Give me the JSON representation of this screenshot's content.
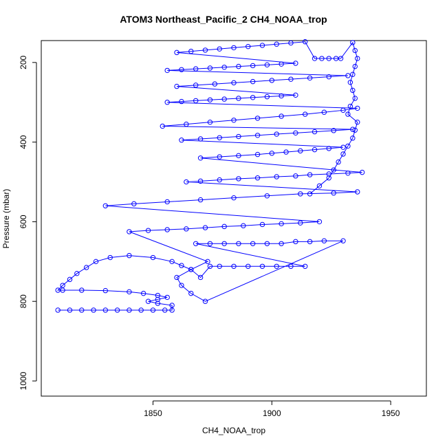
{
  "chart_data": {
    "type": "scatter",
    "title": "ATOM3 Northeast_Pacific_2 CH4_NOAA_trop",
    "xlabel": "CH4_NOAA_trop",
    "ylabel": "Pressure (mbar)",
    "xlim": [
      1803,
      1965
    ],
    "ylim": [
      1038,
      145
    ],
    "y_reversed": true,
    "x_ticks": [
      1850,
      1900,
      1950
    ],
    "y_ticks": [
      200,
      400,
      600,
      800,
      1000
    ],
    "x_tick_labels": [
      "1850",
      "1900",
      "1950"
    ],
    "y_tick_labels": [
      "200",
      "400",
      "600",
      "800",
      "1000"
    ],
    "grid": false,
    "legend": "none",
    "marker": "open-circle",
    "connected": true,
    "color": "#0000ff",
    "series": [
      {
        "x": [
          1810,
          1815,
          1820,
          1825,
          1830,
          1835,
          1840,
          1845,
          1850,
          1855,
          1858,
          1858,
          1852,
          1848,
          1852,
          1856,
          1852,
          1846,
          1840,
          1830,
          1820,
          1812,
          1810,
          1812,
          1815,
          1818,
          1822,
          1826,
          1832,
          1840,
          1850,
          1858,
          1862,
          1866,
          1870,
          1874,
          1878,
          1884,
          1890,
          1896,
          1902,
          1908,
          1914,
          1868,
          1874,
          1880,
          1886,
          1892,
          1898,
          1904,
          1910,
          1916,
          1922,
          1930,
          1872,
          1866,
          1862,
          1860,
          1866,
          1873,
          1840,
          1848,
          1856,
          1864,
          1872,
          1880,
          1888,
          1896,
          1904,
          1912,
          1920,
          1830,
          1842,
          1856,
          1870,
          1884,
          1898,
          1912,
          1926,
          1936,
          1864,
          1870,
          1878,
          1886,
          1894,
          1902,
          1910,
          1916,
          1924,
          1932,
          1938,
          1870,
          1878,
          1886,
          1894,
          1900,
          1906,
          1912,
          1918,
          1924,
          1930,
          1862,
          1870,
          1878,
          1886,
          1894,
          1902,
          1910,
          1918,
          1926,
          1934,
          1854,
          1864,
          1874,
          1884,
          1894,
          1904,
          1914,
          1922,
          1930,
          1936,
          1856,
          1862,
          1868,
          1874,
          1880,
          1886,
          1892,
          1898,
          1904,
          1910,
          1860,
          1868,
          1876,
          1884,
          1892,
          1900,
          1908,
          1916,
          1924,
          1932,
          1856,
          1862,
          1868,
          1874,
          1880,
          1886,
          1892,
          1898,
          1904,
          1910,
          1860,
          1866,
          1872,
          1878,
          1884,
          1890,
          1896,
          1902,
          1908,
          1914,
          1918,
          1921,
          1924,
          1927,
          1929,
          1934,
          1935,
          1936,
          1935,
          1934,
          1933,
          1934,
          1935,
          1933,
          1932,
          1936,
          1935,
          1934,
          1932,
          1930,
          1928,
          1926,
          1924,
          1920,
          1916
        ],
        "y": [
          822,
          822,
          822,
          822,
          822,
          822,
          822,
          822,
          822,
          822,
          822,
          810,
          805,
          800,
          795,
          790,
          785,
          780,
          776,
          773,
          772,
          772,
          772,
          760,
          745,
          730,
          715,
          700,
          690,
          685,
          690,
          700,
          710,
          720,
          740,
          712,
          712,
          712,
          712,
          712,
          712,
          712,
          712,
          655,
          655,
          655,
          655,
          655,
          655,
          655,
          650,
          650,
          648,
          648,
          800,
          780,
          760,
          740,
          720,
          700,
          625,
          622,
          620,
          618,
          615,
          612,
          610,
          607,
          605,
          603,
          600,
          560,
          555,
          550,
          545,
          540,
          535,
          530,
          528,
          525,
          500,
          498,
          495,
          492,
          490,
          487,
          485,
          482,
          480,
          478,
          476,
          440,
          437,
          434,
          431,
          428,
          425,
          422,
          419,
          416,
          413,
          395,
          392,
          389,
          386,
          383,
          380,
          377,
          374,
          371,
          368,
          360,
          355,
          350,
          345,
          340,
          335,
          330,
          325,
          320,
          315,
          300,
          298,
          296,
          294,
          292,
          290,
          288,
          286,
          284,
          282,
          260,
          257,
          254,
          251,
          248,
          245,
          242,
          239,
          236,
          233,
          220,
          218,
          216,
          214,
          212,
          210,
          208,
          206,
          204,
          202,
          175,
          172,
          169,
          166,
          163,
          160,
          157,
          154,
          151,
          148,
          190,
          190,
          190,
          190,
          190,
          150,
          170,
          190,
          210,
          230,
          250,
          270,
          290,
          310,
          330,
          350,
          370,
          390,
          410,
          430,
          450,
          470,
          490,
          510,
          530
        ]
      }
    ]
  }
}
